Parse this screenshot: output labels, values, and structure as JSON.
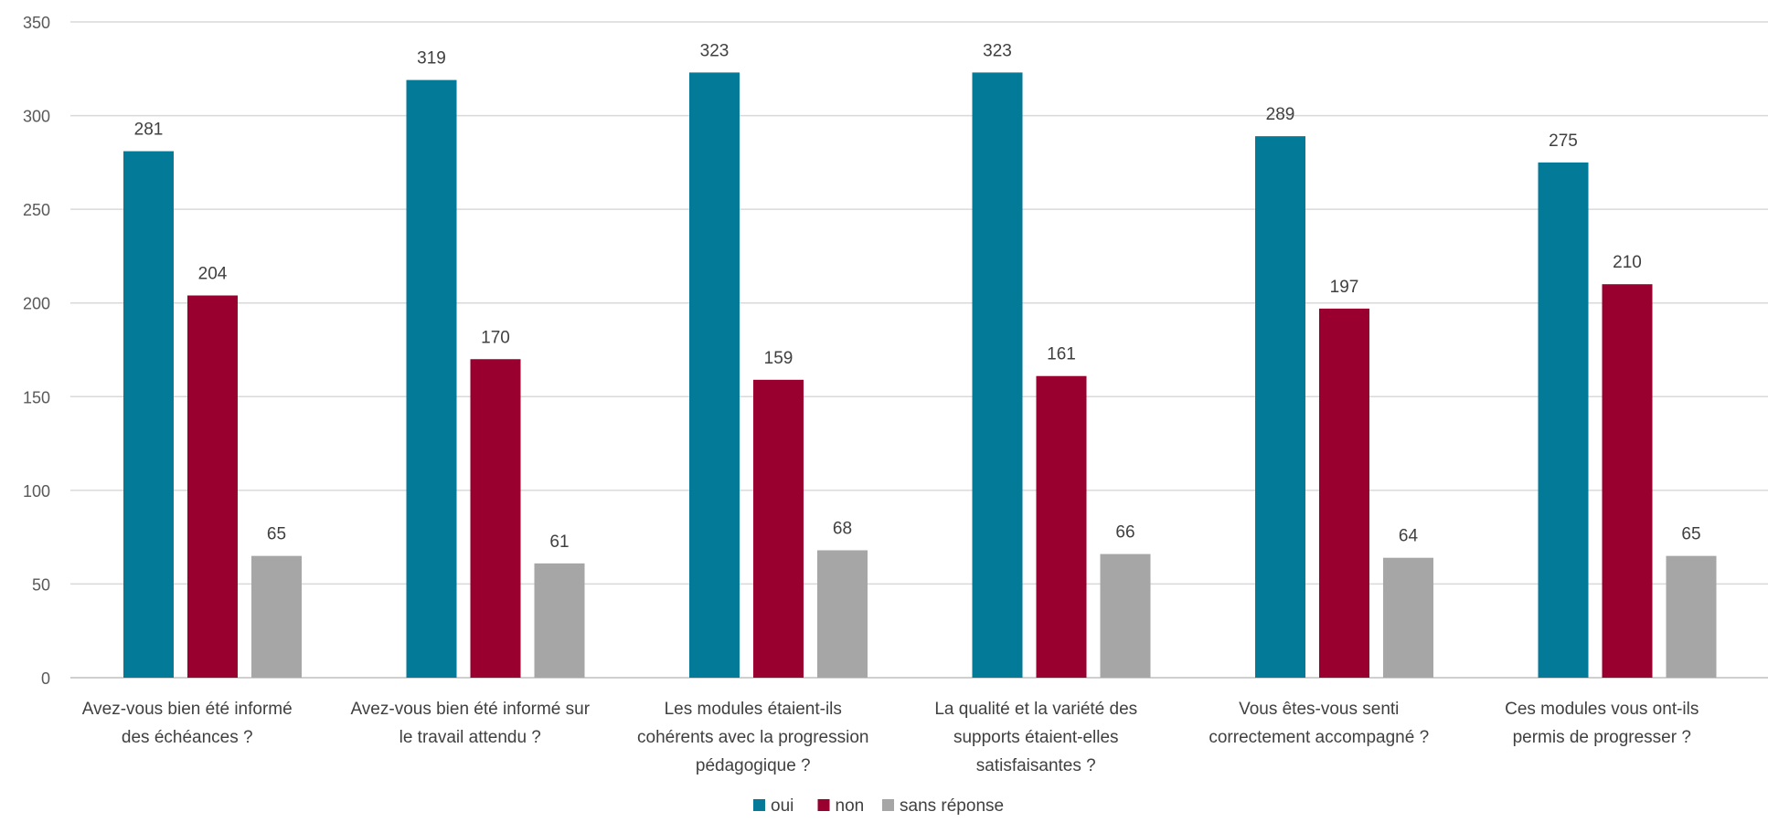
{
  "chart_data": {
    "type": "bar",
    "categories": [
      [
        "Avez-vous bien été informé",
        "des échéances ?"
      ],
      [
        "Avez-vous bien été informé sur",
        "le travail attendu ?"
      ],
      [
        "Les modules étaient-ils",
        "cohérents avec la progression",
        "pédagogique ?"
      ],
      [
        "La qualité et la variété des",
        "supports étaient-elles",
        "satisfaisantes ?"
      ],
      [
        "Vous êtes-vous senti",
        "correctement accompagné ?"
      ],
      [
        "Ces modules vous ont-ils",
        "permis de progresser ?"
      ]
    ],
    "series": [
      {
        "name": "oui",
        "color": "#047a99",
        "values": [
          281,
          319,
          323,
          323,
          289,
          275
        ]
      },
      {
        "name": "non",
        "color": "#99002f",
        "values": [
          204,
          170,
          159,
          161,
          197,
          210
        ]
      },
      {
        "name": "sans réponse",
        "color": "#a6a6a6",
        "values": [
          65,
          61,
          68,
          66,
          64,
          65
        ]
      }
    ],
    "ylim": [
      0,
      350
    ],
    "yticks": [
      0,
      50,
      100,
      150,
      200,
      250,
      300,
      350
    ],
    "grid": true,
    "legend": "bottom-center",
    "title": "",
    "xlabel": "",
    "ylabel": ""
  }
}
